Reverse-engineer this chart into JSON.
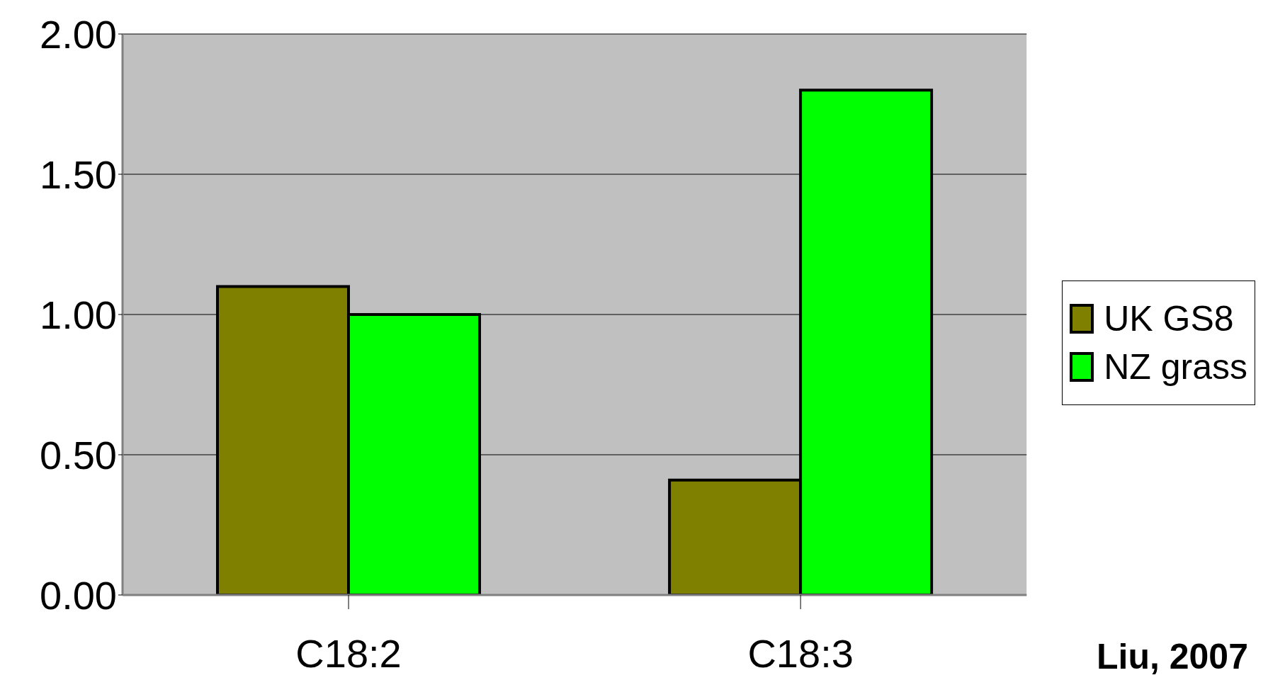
{
  "chart_data": {
    "type": "bar",
    "categories": [
      "C18:2",
      "C18:3"
    ],
    "series": [
      {
        "name": "UK GS8",
        "color": "#808000",
        "values": [
          1.1,
          0.41
        ]
      },
      {
        "name": "NZ grass",
        "color": "#00ff00",
        "values": [
          1.0,
          1.8
        ]
      }
    ],
    "ylim": [
      0,
      2
    ],
    "yticks": [
      {
        "value": 0,
        "label": "0.00"
      },
      {
        "value": 0.5,
        "label": "0.50"
      },
      {
        "value": 1,
        "label": "1.00"
      },
      {
        "value": 1.5,
        "label": "1.50"
      },
      {
        "value": 2,
        "label": "2.00"
      }
    ],
    "grid": "y",
    "legend": "right",
    "annotations": [
      "Liu, 2007"
    ]
  }
}
